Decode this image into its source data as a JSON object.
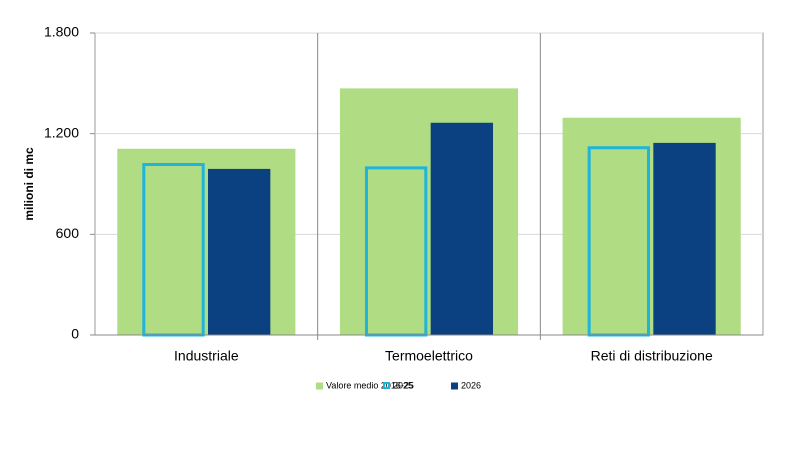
{
  "chart_data": {
    "type": "bar",
    "y_label": "milioni di mc",
    "categories": [
      "Industriale",
      "Termoelettrico",
      "Reti di distribuzione"
    ],
    "series": [
      {
        "name": "Valore medio 2016-25",
        "color": "#b0dd84",
        "values": [
          1110,
          1470,
          1295
        ],
        "overlay": true
      },
      {
        "name": "2025",
        "color": "#1eb4dc",
        "values": [
          1025,
          1005,
          1125
        ],
        "outline": true
      },
      {
        "name": "2026",
        "color": "#0b4180",
        "values": [
          990,
          1265,
          1145
        ]
      }
    ],
    "ylim": [
      0,
      1800
    ],
    "yticks": [
      0,
      600,
      {
        "value": 1200,
        "label": "1.200"
      },
      {
        "value": 1800,
        "label": "1.800"
      }
    ],
    "grid": true
  }
}
